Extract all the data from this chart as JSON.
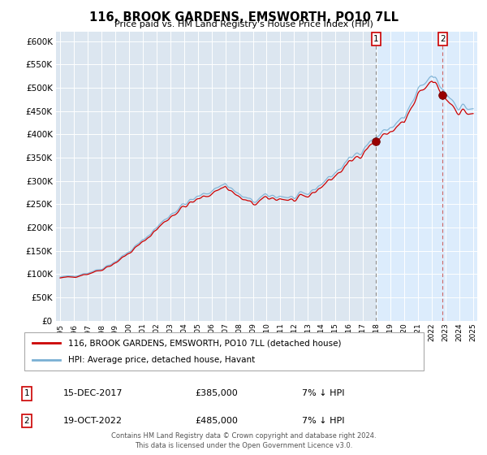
{
  "title": "116, BROOK GARDENS, EMSWORTH, PO10 7LL",
  "subtitle": "Price paid vs. HM Land Registry's House Price Index (HPI)",
  "legend_property": "116, BROOK GARDENS, EMSWORTH, PO10 7LL (detached house)",
  "legend_hpi": "HPI: Average price, detached house, Havant",
  "footer": "Contains HM Land Registry data © Crown copyright and database right 2024.\nThis data is licensed under the Open Government Licence v3.0.",
  "property_color": "#cc0000",
  "hpi_color": "#7ab0d4",
  "shade_color": "#ddeeff",
  "background_color": "#ffffff",
  "plot_bg_color": "#dce6f0",
  "ylim": [
    0,
    620000
  ],
  "yticks": [
    0,
    50000,
    100000,
    150000,
    200000,
    250000,
    300000,
    350000,
    400000,
    450000,
    500000,
    550000,
    600000
  ],
  "t1": 2017.958,
  "t2": 2022.792,
  "sale1_price": 385000,
  "sale2_price": 485000,
  "xlim_left": 1994.7,
  "xlim_right": 2025.3
}
